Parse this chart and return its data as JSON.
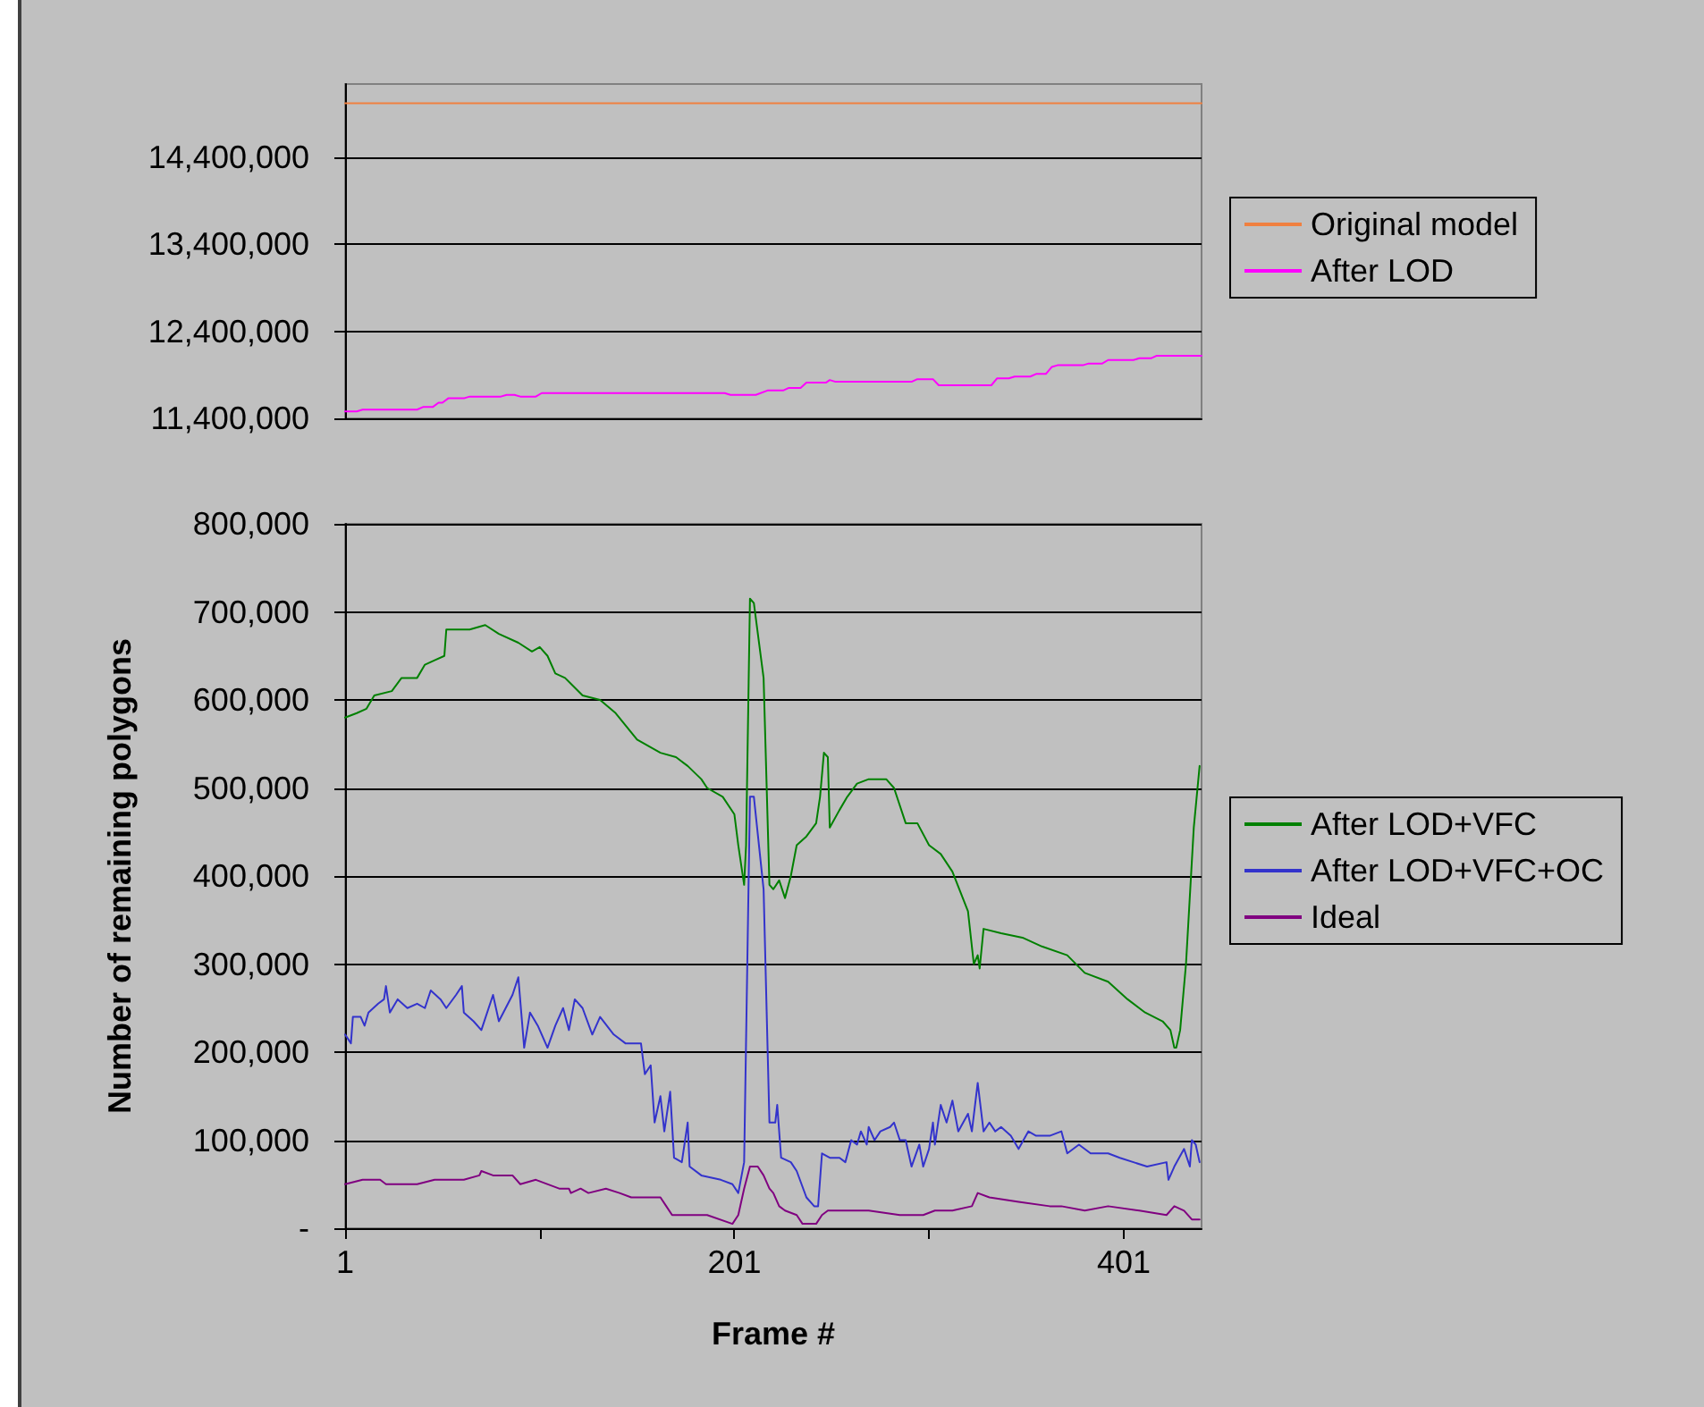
{
  "chart_data": [
    {
      "type": "line",
      "xlim": [
        1,
        441
      ],
      "ylim": [
        11400000,
        15240000
      ],
      "yticks": [
        {
          "value": 11400000,
          "label": "11,400,000"
        },
        {
          "value": 12400000,
          "label": "12,400,000"
        },
        {
          "value": 13400000,
          "label": "13,400,000"
        },
        {
          "value": 14400000,
          "label": "14,400,000"
        }
      ],
      "tick_labels": "y",
      "grid": "y",
      "legend": "right",
      "marker": "none",
      "line_style": "solid",
      "series": [
        {
          "name": "Original model",
          "color": "#f08040",
          "x": [
            1,
            441
          ],
          "values": [
            15020000,
            15020000
          ]
        },
        {
          "name": "After LOD",
          "color": "#ff00ff",
          "x": [
            1,
            7,
            10,
            38,
            41,
            46,
            49,
            51,
            54,
            62,
            65,
            81,
            84,
            88,
            91,
            99,
            102,
            196,
            199,
            212,
            218,
            226,
            229,
            235,
            238,
            248,
            250,
            253,
            292,
            295,
            303,
            306,
            333,
            336,
            342,
            345,
            353,
            356,
            361,
            364,
            367,
            380,
            383,
            390,
            393,
            406,
            409,
            415,
            418,
            441
          ],
          "values": [
            11480000,
            11480000,
            11500000,
            11500000,
            11530000,
            11530000,
            11580000,
            11580000,
            11630000,
            11630000,
            11650000,
            11650000,
            11670000,
            11670000,
            11650000,
            11650000,
            11690000,
            11690000,
            11670000,
            11670000,
            11720000,
            11720000,
            11750000,
            11750000,
            11810000,
            11810000,
            11840000,
            11820000,
            11820000,
            11850000,
            11850000,
            11780000,
            11780000,
            11860000,
            11860000,
            11880000,
            11880000,
            11910000,
            11910000,
            11990000,
            12010000,
            12010000,
            12030000,
            12030000,
            12070000,
            12070000,
            12090000,
            12090000,
            12120000,
            12120000
          ]
        }
      ]
    },
    {
      "type": "line",
      "xlabel": "Frame #",
      "ylabel": "Number of remaining polygons",
      "xlim": [
        1,
        441
      ],
      "xticks": [
        1,
        {
          "value": 101,
          "label": null
        },
        201,
        {
          "value": 301,
          "label": null
        },
        401
      ],
      "ylim": [
        0,
        800000
      ],
      "yticks": [
        {
          "value": 0,
          "label": "-"
        },
        {
          "value": 100000,
          "label": "100,000"
        },
        {
          "value": 200000,
          "label": "200,000"
        },
        {
          "value": 300000,
          "label": "300,000"
        },
        {
          "value": 400000,
          "label": "400,000"
        },
        {
          "value": 500000,
          "label": "500,000"
        },
        {
          "value": 600000,
          "label": "600,000"
        },
        {
          "value": 700000,
          "label": "700,000"
        },
        {
          "value": 800000,
          "label": "800,000"
        }
      ],
      "grid": "y",
      "legend": "right",
      "marker": "none",
      "line_style": "solid",
      "series": [
        {
          "name": "After LOD+VFC",
          "color": "#008000",
          "x": [
            1,
            7,
            12,
            16,
            25,
            30,
            38,
            42,
            47,
            52,
            53,
            65,
            73,
            80,
            90,
            97,
            101,
            105,
            109,
            114,
            123,
            132,
            140,
            151,
            163,
            171,
            177,
            184,
            187,
            195,
            201,
            203,
            206,
            207,
            209,
            211,
            216,
            219,
            221,
            224,
            227,
            230,
            233,
            238,
            243,
            245,
            247,
            249,
            250,
            255,
            259,
            264,
            270,
            279,
            283,
            289,
            295,
            301,
            307,
            313,
            321,
            324,
            326,
            327,
            329,
            338,
            349,
            359,
            372,
            381,
            393,
            403,
            412,
            421,
            425,
            427,
            428,
            430,
            433,
            437,
            440
          ],
          "values": [
            580000,
            585000,
            590000,
            605000,
            610000,
            625000,
            625000,
            640000,
            645000,
            650000,
            680000,
            680000,
            685000,
            675000,
            665000,
            655000,
            660000,
            650000,
            630000,
            625000,
            605000,
            600000,
            585000,
            555000,
            540000,
            535000,
            525000,
            510000,
            500000,
            490000,
            470000,
            435000,
            390000,
            435000,
            715000,
            710000,
            625000,
            390000,
            385000,
            395000,
            375000,
            400000,
            435000,
            445000,
            460000,
            490000,
            540000,
            535000,
            455000,
            475000,
            490000,
            505000,
            510000,
            510000,
            500000,
            460000,
            460000,
            435000,
            425000,
            405000,
            360000,
            300000,
            310000,
            295000,
            340000,
            335000,
            330000,
            320000,
            310000,
            290000,
            280000,
            260000,
            245000,
            235000,
            225000,
            205000,
            205000,
            225000,
            300000,
            455000,
            525000
          ]
        },
        {
          "name": "After LOD+VFC+OC",
          "color": "#3333cc",
          "x": [
            1,
            4,
            5,
            9,
            11,
            13,
            18,
            21,
            22,
            24,
            28,
            33,
            38,
            42,
            45,
            50,
            53,
            58,
            61,
            62,
            67,
            71,
            77,
            80,
            87,
            90,
            93,
            96,
            100,
            105,
            109,
            113,
            116,
            119,
            123,
            128,
            132,
            139,
            145,
            153,
            155,
            158,
            160,
            163,
            165,
            168,
            170,
            174,
            177,
            178,
            184,
            194,
            200,
            203,
            206,
            209,
            211,
            216,
            219,
            222,
            223,
            225,
            230,
            233,
            238,
            242,
            244,
            246,
            250,
            255,
            258,
            261,
            264,
            266,
            269,
            270,
            273,
            276,
            281,
            283,
            286,
            289,
            292,
            296,
            298,
            301,
            303,
            304,
            307,
            310,
            313,
            316,
            321,
            323,
            326,
            329,
            332,
            335,
            338,
            343,
            347,
            352,
            356,
            363,
            369,
            372,
            378,
            384,
            393,
            399,
            406,
            413,
            423,
            424,
            427,
            432,
            435,
            436,
            438,
            440
          ],
          "values": [
            220000,
            210000,
            240000,
            240000,
            230000,
            245000,
            255000,
            260000,
            275000,
            245000,
            260000,
            250000,
            255000,
            250000,
            270000,
            260000,
            250000,
            265000,
            275000,
            245000,
            235000,
            225000,
            265000,
            235000,
            265000,
            285000,
            205000,
            245000,
            230000,
            205000,
            230000,
            250000,
            225000,
            260000,
            250000,
            220000,
            240000,
            220000,
            210000,
            210000,
            175000,
            185000,
            120000,
            150000,
            110000,
            155000,
            80000,
            75000,
            120000,
            70000,
            60000,
            55000,
            50000,
            40000,
            75000,
            490000,
            490000,
            385000,
            120000,
            120000,
            140000,
            80000,
            75000,
            65000,
            35000,
            25000,
            25000,
            85000,
            80000,
            80000,
            75000,
            100000,
            95000,
            110000,
            95000,
            115000,
            100000,
            110000,
            115000,
            120000,
            100000,
            100000,
            70000,
            95000,
            70000,
            90000,
            120000,
            95000,
            140000,
            120000,
            145000,
            110000,
            130000,
            110000,
            165000,
            110000,
            120000,
            110000,
            115000,
            105000,
            90000,
            110000,
            105000,
            105000,
            110000,
            85000,
            95000,
            85000,
            85000,
            80000,
            75000,
            70000,
            75000,
            55000,
            70000,
            90000,
            70000,
            100000,
            95000,
            75000
          ]
        },
        {
          "name": "Ideal",
          "color": "#800080",
          "x": [
            1,
            10,
            19,
            22,
            38,
            47,
            62,
            70,
            71,
            77,
            87,
            91,
            99,
            111,
            116,
            117,
            122,
            126,
            135,
            142,
            148,
            155,
            163,
            166,
            169,
            178,
            187,
            200,
            203,
            206,
            209,
            213,
            216,
            219,
            221,
            224,
            227,
            233,
            236,
            243,
            246,
            249,
            270,
            286,
            298,
            304,
            313,
            323,
            326,
            332,
            347,
            363,
            369,
            381,
            393,
            409,
            423,
            427,
            432,
            436,
            440
          ],
          "values": [
            50000,
            55000,
            55000,
            50000,
            50000,
            55000,
            55000,
            60000,
            65000,
            60000,
            60000,
            50000,
            55000,
            45000,
            45000,
            40000,
            45000,
            40000,
            45000,
            40000,
            35000,
            35000,
            35000,
            25000,
            15000,
            15000,
            15000,
            5000,
            15000,
            45000,
            70000,
            70000,
            60000,
            45000,
            40000,
            25000,
            20000,
            15000,
            5000,
            5000,
            15000,
            20000,
            20000,
            15000,
            15000,
            20000,
            20000,
            25000,
            40000,
            35000,
            30000,
            25000,
            25000,
            20000,
            25000,
            20000,
            15000,
            25000,
            20000,
            10000,
            10000
          ]
        }
      ]
    }
  ]
}
